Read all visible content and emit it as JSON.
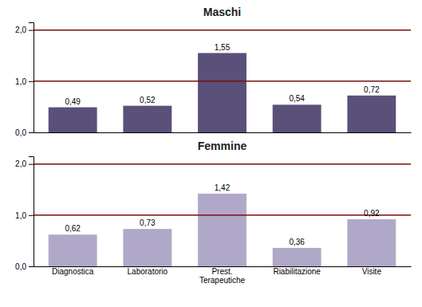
{
  "chart_data": [
    {
      "type": "bar",
      "title": "Maschi",
      "categories": [
        "Diagnostica",
        "Laboratorio",
        "Prest.\nTerapeutiche",
        "Riabilitazione",
        "Visite"
      ],
      "values": [
        0.49,
        0.52,
        1.55,
        0.54,
        0.72
      ],
      "value_labels": [
        "0,49",
        "0,52",
        "1,55",
        "0,54",
        "0,72"
      ],
      "color": "#5a507a",
      "ylim": [
        0,
        2.15
      ],
      "yticks": [
        {
          "value": 0.0,
          "label": "0,0"
        },
        {
          "value": 1.0,
          "label": "1,0"
        },
        {
          "value": 2.0,
          "label": "2,0"
        }
      ],
      "reference_lines": [
        {
          "value": 1.0,
          "color": "#7a1010"
        },
        {
          "value": 2.0,
          "color": "#7a1010"
        }
      ],
      "data_labels": true,
      "grid": false,
      "tick_labels": "y"
    },
    {
      "type": "bar",
      "title": "Femmine",
      "categories": [
        "Diagnostica",
        "Laboratorio",
        "Prest.\nTerapeutiche",
        "Riabilitazione",
        "Visite"
      ],
      "values": [
        0.62,
        0.73,
        1.42,
        0.36,
        0.92
      ],
      "value_labels": [
        "0,62",
        "0,73",
        "1,42",
        "0,36",
        "0,92"
      ],
      "color": "#b0a8c8",
      "ylim": [
        0,
        2.15
      ],
      "yticks": [
        {
          "value": 0.0,
          "label": "0,0"
        },
        {
          "value": 1.0,
          "label": "1,0"
        },
        {
          "value": 2.0,
          "label": "2,0"
        }
      ],
      "reference_lines": [
        {
          "value": 1.0,
          "color": "#7a1010"
        },
        {
          "value": 2.0,
          "color": "#7a1010"
        }
      ],
      "data_labels": true,
      "grid": false
    }
  ]
}
